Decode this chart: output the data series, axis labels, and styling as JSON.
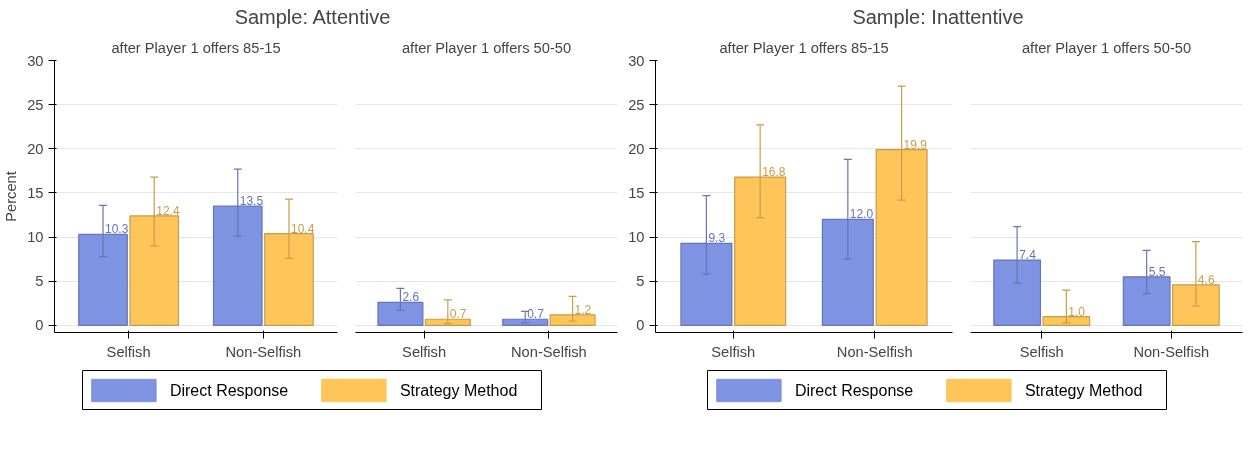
{
  "chart_data": [
    {
      "type": "bar",
      "title": "Sample: Attentive",
      "subtitle": "after Player 1 offers 85-15",
      "ylabel": "Percent",
      "categories": [
        "Selfish",
        "Non-Selfish"
      ],
      "ylim": [
        -0.8,
        30
      ],
      "yticks": [
        0,
        5,
        10,
        15,
        20,
        25,
        30
      ],
      "grid": "y",
      "legend": "bottom",
      "series": [
        {
          "name": "Direct Response",
          "color": "#7f93e3",
          "values": [
            10.3,
            13.5
          ],
          "value_labels": [
            "10.3",
            "13.5"
          ],
          "errors": [
            [
              7.8,
              13.6
            ],
            [
              10.1,
              17.7
            ]
          ]
        },
        {
          "name": "Strategy Method",
          "color": "#fdc55a",
          "values": [
            12.4,
            10.4
          ],
          "value_labels": [
            "12.4",
            "10.4"
          ],
          "errors": [
            [
              9.0,
              16.8
            ],
            [
              7.6,
              14.3
            ]
          ]
        }
      ]
    },
    {
      "type": "bar",
      "subtitle": "after Player 1 offers 50-50",
      "categories": [
        "Selfish",
        "Non-Selfish"
      ],
      "ylim": [
        -0.8,
        30
      ],
      "yticks": [
        0,
        5,
        10,
        15,
        20,
        25,
        30
      ],
      "grid": "y",
      "tick_labels": "x",
      "series": [
        {
          "color": "#7f93e3",
          "values": [
            2.6,
            0.7
          ],
          "value_labels": [
            "2.6",
            "0.7"
          ],
          "errors": [
            [
              1.7,
              4.2
            ],
            [
              0.3,
              1.6
            ]
          ]
        },
        {
          "color": "#fdc55a",
          "values": [
            0.7,
            1.2
          ],
          "value_labels": [
            "0.7",
            "1.2"
          ],
          "errors": [
            [
              0.2,
              2.9
            ],
            [
              0.5,
              3.3
            ]
          ]
        }
      ]
    },
    {
      "type": "bar",
      "title": "Sample: Inattentive",
      "subtitle": "after Player 1 offers 85-15",
      "categories": [
        "Selfish",
        "Non-Selfish"
      ],
      "ylim": [
        -0.8,
        30
      ],
      "yticks": [
        0,
        5,
        10,
        15,
        20,
        25,
        30
      ],
      "grid": "y",
      "legend": "bottom",
      "series": [
        {
          "name": "Direct Response",
          "color": "#7f93e3",
          "values": [
            9.3,
            12.0
          ],
          "value_labels": [
            "9.3",
            "12.0"
          ],
          "errors": [
            [
              5.8,
              14.7
            ],
            [
              7.5,
              18.8
            ]
          ]
        },
        {
          "name": "Strategy Method",
          "color": "#fdc55a",
          "values": [
            16.8,
            19.9
          ],
          "value_labels": [
            "16.8",
            "19.9"
          ],
          "errors": [
            [
              12.2,
              22.7
            ],
            [
              14.2,
              27.1
            ]
          ]
        }
      ]
    },
    {
      "type": "bar",
      "subtitle": "after Player 1 offers 50-50",
      "categories": [
        "Selfish",
        "Non-Selfish"
      ],
      "ylim": [
        -0.8,
        30
      ],
      "yticks": [
        0,
        5,
        10,
        15,
        20,
        25,
        30
      ],
      "grid": "y",
      "tick_labels": "x",
      "series": [
        {
          "color": "#7f93e3",
          "values": [
            7.4,
            5.5
          ],
          "value_labels": [
            "7.4",
            "5.5"
          ],
          "errors": [
            [
              4.8,
              11.2
            ],
            [
              3.6,
              8.5
            ]
          ]
        },
        {
          "color": "#fdc55a",
          "values": [
            1.0,
            4.6
          ],
          "value_labels": [
            "1.0",
            "4.6"
          ],
          "errors": [
            [
              0.3,
              4.0
            ],
            [
              2.2,
              9.5
            ]
          ]
        }
      ]
    }
  ]
}
